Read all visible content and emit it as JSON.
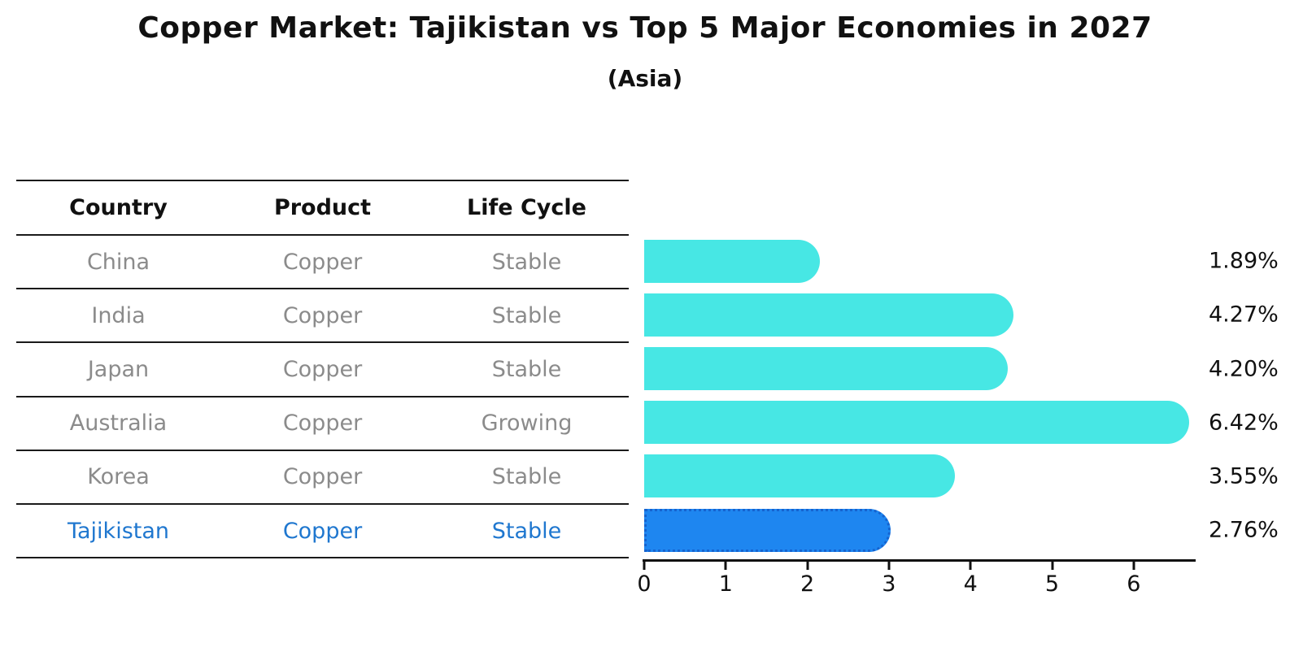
{
  "title": "Copper Market: Tajikistan vs Top 5 Major Economies in 2027",
  "subtitle": "(Asia)",
  "table": {
    "headers": [
      "Country",
      "Product",
      "Life Cycle"
    ],
    "rows": [
      {
        "country": "China",
        "product": "Copper",
        "life_cycle": "Stable",
        "highlighted": false
      },
      {
        "country": "India",
        "product": "Copper",
        "life_cycle": "Stable",
        "highlighted": false
      },
      {
        "country": "Japan",
        "product": "Copper",
        "life_cycle": "Stable",
        "highlighted": false
      },
      {
        "country": "Australia",
        "product": "Copper",
        "life_cycle": "Growing",
        "highlighted": false
      },
      {
        "country": "Korea",
        "product": "Copper",
        "life_cycle": "Stable",
        "highlighted": false
      },
      {
        "country": "Tajikistan",
        "product": "Copper",
        "life_cycle": "Stable",
        "highlighted": true
      }
    ]
  },
  "chart_data": {
    "type": "bar",
    "orientation": "horizontal",
    "title": "Copper Market: Tajikistan vs Top 5 Major Economies in 2027",
    "subtitle": "(Asia)",
    "categories": [
      "China",
      "India",
      "Japan",
      "Australia",
      "Korea",
      "Tajikistan"
    ],
    "values": [
      1.89,
      4.27,
      4.2,
      6.42,
      3.55,
      2.76
    ],
    "value_labels": [
      "1.89%",
      "4.27%",
      "4.20%",
      "6.42%",
      "3.55%",
      "2.76%"
    ],
    "x_ticks": [
      0,
      1,
      2,
      3,
      4,
      5,
      6
    ],
    "xlim": [
      0,
      6.75
    ],
    "grid": false,
    "legend": "none",
    "highlight_index": 5,
    "colors": {
      "bar": "#47e7e4",
      "highlight_bar": "#1e86f0",
      "highlight_border": "#1563cf",
      "highlight_text": "#1f77cf",
      "row_text": "#8b8b8b",
      "header_text": "#111111",
      "axis": "#111111"
    }
  }
}
